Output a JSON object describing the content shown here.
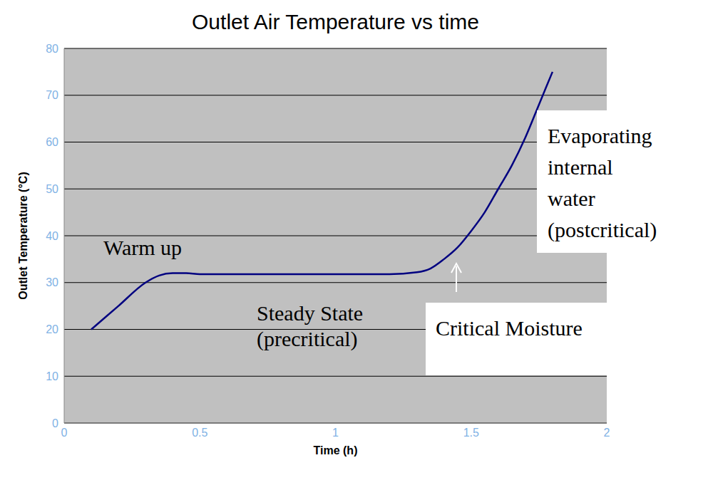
{
  "chart_data": {
    "type": "line",
    "title": "Outlet Air Temperature vs time",
    "x_label": "Time (h)",
    "y_label": "Outlet Temperature (°C)",
    "x": [
      0.1,
      0.2,
      0.3,
      0.35,
      0.4,
      0.45,
      0.5,
      0.75,
      1.0,
      1.2,
      1.3,
      1.35,
      1.4,
      1.45,
      1.5,
      1.55,
      1.6,
      1.65,
      1.7,
      1.75,
      1.8
    ],
    "values": [
      20,
      25,
      30,
      31.5,
      32,
      32,
      31.8,
      31.8,
      31.8,
      31.8,
      32.2,
      33,
      35,
      37.5,
      41,
      45,
      50,
      55,
      61,
      68,
      75
    ],
    "color": "#000080",
    "xlim": [
      0,
      2
    ],
    "xticks": [
      0,
      0.5,
      1,
      1.5,
      2
    ],
    "ylim": [
      0,
      80
    ],
    "yticks": [
      0,
      10,
      20,
      30,
      40,
      50,
      60,
      70,
      80
    ],
    "grid": true,
    "annotations": [
      {
        "text": "Warm up"
      },
      {
        "text": "Steady State\n(precritical)"
      },
      {
        "text": "Critical Moisture"
      },
      {
        "text": "Evaporating\ninternal\nwater\n(postcritical)"
      }
    ]
  }
}
